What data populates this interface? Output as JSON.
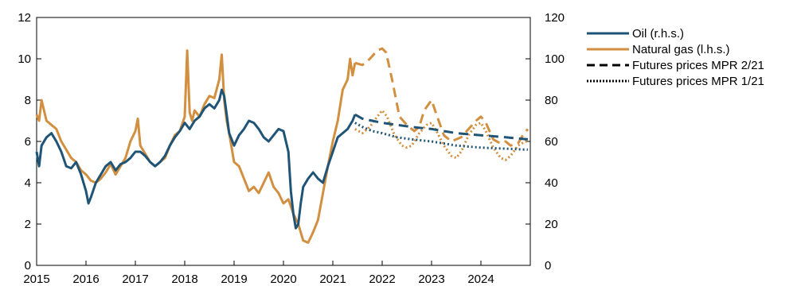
{
  "chart_data": {
    "type": "line",
    "x_range": [
      2015.0,
      2025.0
    ],
    "x_ticks": [
      "2015",
      "2016",
      "2017",
      "2018",
      "2019",
      "2020",
      "2021",
      "2022",
      "2023",
      "2024"
    ],
    "left_axis": {
      "ticks": [
        "0",
        "2",
        "4",
        "6",
        "8",
        "10",
        "12"
      ],
      "ylim": [
        0,
        12
      ]
    },
    "right_axis": {
      "ticks": [
        "0",
        "20",
        "40",
        "60",
        "80",
        "100",
        "120"
      ],
      "ylim": [
        0,
        120
      ]
    },
    "grid": false,
    "legend_position": "top-right, outside plot",
    "colors": {
      "oil": "#1f5476",
      "gas": "#d28f3f"
    },
    "series": [
      {
        "name": "Oil (r.h.s.)",
        "axis": "right",
        "style": "solid",
        "color": "#1f5476",
        "x": [
          2015.0,
          2015.05,
          2015.1,
          2015.2,
          2015.3,
          2015.4,
          2015.5,
          2015.6,
          2015.7,
          2015.8,
          2015.9,
          2016.0,
          2016.05,
          2016.1,
          2016.2,
          2016.3,
          2016.4,
          2016.5,
          2016.6,
          2016.7,
          2016.8,
          2016.9,
          2017.0,
          2017.1,
          2017.2,
          2017.3,
          2017.4,
          2017.5,
          2017.6,
          2017.7,
          2017.8,
          2017.9,
          2018.0,
          2018.1,
          2018.2,
          2018.3,
          2018.4,
          2018.5,
          2018.6,
          2018.7,
          2018.75,
          2018.8,
          2018.9,
          2019.0,
          2019.1,
          2019.2,
          2019.3,
          2019.4,
          2019.5,
          2019.6,
          2019.7,
          2019.8,
          2019.9,
          2020.0,
          2020.1,
          2020.15,
          2020.2,
          2020.25,
          2020.3,
          2020.35,
          2020.4,
          2020.5,
          2020.6,
          2020.7,
          2020.8,
          2020.9,
          2021.0,
          2021.1,
          2021.2,
          2021.3,
          2021.4,
          2021.45
        ],
        "values": [
          55,
          48,
          58,
          62,
          64,
          60,
          55,
          48,
          47,
          50,
          44,
          36,
          30,
          33,
          40,
          44,
          48,
          50,
          46,
          49,
          50,
          52,
          55,
          55,
          53,
          50,
          48,
          50,
          53,
          58,
          62,
          65,
          69,
          66,
          70,
          72,
          76,
          78,
          76,
          80,
          85,
          82,
          64,
          58,
          63,
          66,
          70,
          69,
          66,
          62,
          60,
          63,
          66,
          65,
          55,
          36,
          25,
          18,
          20,
          30,
          38,
          42,
          45,
          42,
          40,
          48,
          55,
          62,
          64,
          66,
          70,
          73
        ]
      },
      {
        "name": "Natural gas (l.h.s.)",
        "axis": "left",
        "style": "solid",
        "color": "#d28f3f",
        "x": [
          2015.0,
          2015.05,
          2015.1,
          2015.2,
          2015.3,
          2015.4,
          2015.5,
          2015.6,
          2015.7,
          2015.8,
          2015.9,
          2016.0,
          2016.1,
          2016.2,
          2016.3,
          2016.4,
          2016.5,
          2016.6,
          2016.7,
          2016.8,
          2016.9,
          2017.0,
          2017.05,
          2017.1,
          2017.2,
          2017.3,
          2017.4,
          2017.5,
          2017.6,
          2017.7,
          2017.8,
          2017.9,
          2018.0,
          2018.05,
          2018.1,
          2018.15,
          2018.2,
          2018.3,
          2018.4,
          2018.5,
          2018.6,
          2018.7,
          2018.75,
          2018.8,
          2018.85,
          2018.9,
          2019.0,
          2019.1,
          2019.2,
          2019.3,
          2019.4,
          2019.5,
          2019.6,
          2019.7,
          2019.8,
          2019.9,
          2020.0,
          2020.1,
          2020.2,
          2020.3,
          2020.4,
          2020.5,
          2020.6,
          2020.7,
          2020.8,
          2020.9,
          2021.0,
          2021.05,
          2021.1,
          2021.2,
          2021.3,
          2021.35,
          2021.4,
          2021.45
        ],
        "values": [
          7.3,
          7.0,
          8.0,
          7.0,
          6.8,
          6.6,
          6.0,
          5.6,
          5.2,
          5.0,
          4.6,
          4.4,
          4.1,
          4.0,
          4.2,
          4.5,
          4.9,
          4.4,
          4.8,
          5.2,
          6.0,
          6.5,
          7.1,
          5.8,
          5.4,
          5.0,
          4.8,
          5.0,
          5.2,
          5.8,
          6.3,
          6.5,
          7.2,
          10.4,
          7.4,
          7.0,
          7.5,
          7.2,
          7.8,
          8.2,
          8.1,
          9.0,
          10.2,
          8.0,
          7.0,
          6.4,
          5.0,
          4.8,
          4.2,
          3.6,
          3.8,
          3.5,
          4.0,
          4.5,
          3.8,
          3.5,
          3.0,
          3.2,
          2.5,
          2.0,
          1.2,
          1.1,
          1.6,
          2.2,
          3.5,
          4.8,
          6.0,
          6.5,
          7.0,
          8.5,
          9.0,
          10.0,
          9.2,
          9.8
        ]
      },
      {
        "name": "Futures prices MPR 2/21",
        "style": "dashed",
        "oil": {
          "axis": "right",
          "color": "#1f5476",
          "x": [
            2021.45,
            2021.6,
            2021.8,
            2022.0,
            2022.3,
            2022.6,
            2023.0,
            2023.5,
            2024.0,
            2024.5,
            2024.95
          ],
          "values": [
            73,
            71,
            70,
            69,
            68,
            67,
            66,
            64,
            63,
            62,
            61
          ]
        },
        "gas": {
          "axis": "left",
          "color": "#d28f3f",
          "x": [
            2021.45,
            2021.6,
            2021.75,
            2021.9,
            2022.0,
            2022.08,
            2022.2,
            2022.35,
            2022.5,
            2022.65,
            2022.75,
            2022.85,
            2023.0,
            2023.1,
            2023.25,
            2023.4,
            2023.5,
            2023.6,
            2023.75,
            2023.9,
            2024.0,
            2024.1,
            2024.25,
            2024.4,
            2024.5,
            2024.6,
            2024.75,
            2024.85,
            2024.95
          ],
          "values": [
            9.8,
            9.7,
            10.0,
            10.4,
            10.5,
            10.3,
            9.0,
            7.2,
            6.8,
            6.5,
            6.7,
            7.5,
            8.0,
            7.3,
            6.3,
            6.0,
            6.1,
            6.2,
            6.6,
            7.0,
            7.2,
            6.9,
            6.1,
            5.9,
            6.0,
            5.8,
            5.9,
            6.3,
            6.6
          ]
        }
      },
      {
        "name": "Futures prices MPR 1/21",
        "style": "dotted",
        "oil": {
          "axis": "right",
          "color": "#1f5476",
          "x": [
            2021.45,
            2021.6,
            2021.8,
            2022.0,
            2022.3,
            2022.6,
            2023.0,
            2023.5,
            2024.0,
            2024.5,
            2024.95
          ],
          "values": [
            69,
            67,
            65,
            64,
            62,
            61,
            60,
            58,
            57,
            56.5,
            56
          ]
        },
        "gas": {
          "axis": "left",
          "color": "#d28f3f",
          "x": [
            2021.45,
            2021.6,
            2021.75,
            2021.9,
            2022.0,
            2022.1,
            2022.25,
            2022.4,
            2022.5,
            2022.6,
            2022.75,
            2022.9,
            2023.0,
            2023.1,
            2023.25,
            2023.4,
            2023.5,
            2023.6,
            2023.75,
            2023.9,
            2024.0,
            2024.1,
            2024.25,
            2024.4,
            2024.5,
            2024.6,
            2024.75,
            2024.9,
            2024.95
          ],
          "values": [
            6.6,
            6.4,
            6.7,
            7.2,
            7.5,
            7.2,
            6.3,
            5.8,
            5.7,
            5.8,
            6.4,
            6.8,
            6.9,
            6.5,
            5.8,
            5.3,
            5.2,
            5.5,
            6.3,
            6.8,
            6.9,
            6.5,
            5.7,
            5.2,
            5.1,
            5.3,
            5.8,
            6.0,
            6.0
          ]
        }
      }
    ]
  }
}
